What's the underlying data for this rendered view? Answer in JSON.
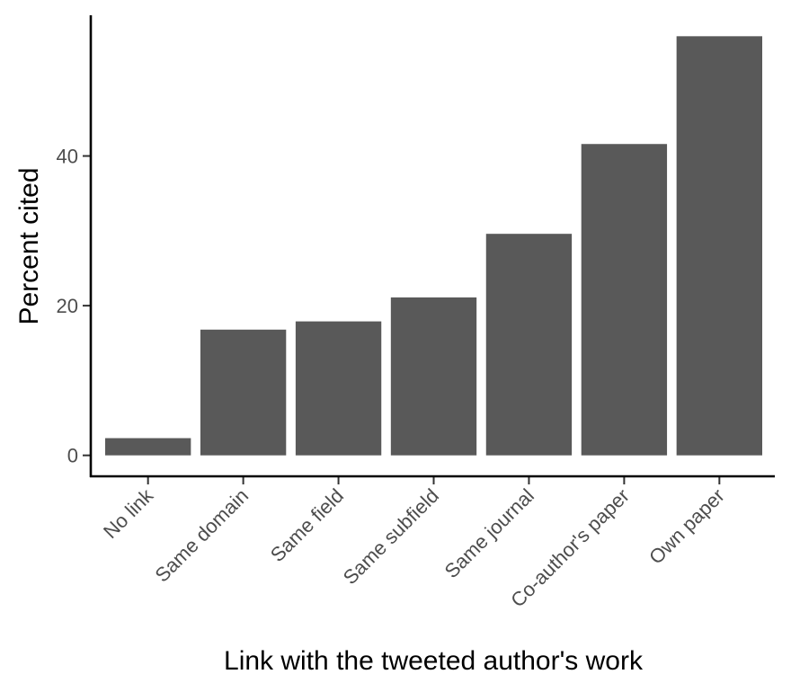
{
  "chart_data": {
    "type": "bar",
    "categories": [
      "No link",
      "Same domain",
      "Same field",
      "Same subfield",
      "Same journal",
      "Co-author's paper",
      "Own paper"
    ],
    "values": [
      2.3,
      16.8,
      17.9,
      21.1,
      29.6,
      41.6,
      56.0
    ],
    "xlabel": "Link with the tweeted author's work",
    "ylabel": "Percent cited",
    "yticks": [
      0,
      20,
      40
    ],
    "ylim": [
      -2.8,
      58.8
    ],
    "bar_color": "#595959",
    "grid": false
  }
}
